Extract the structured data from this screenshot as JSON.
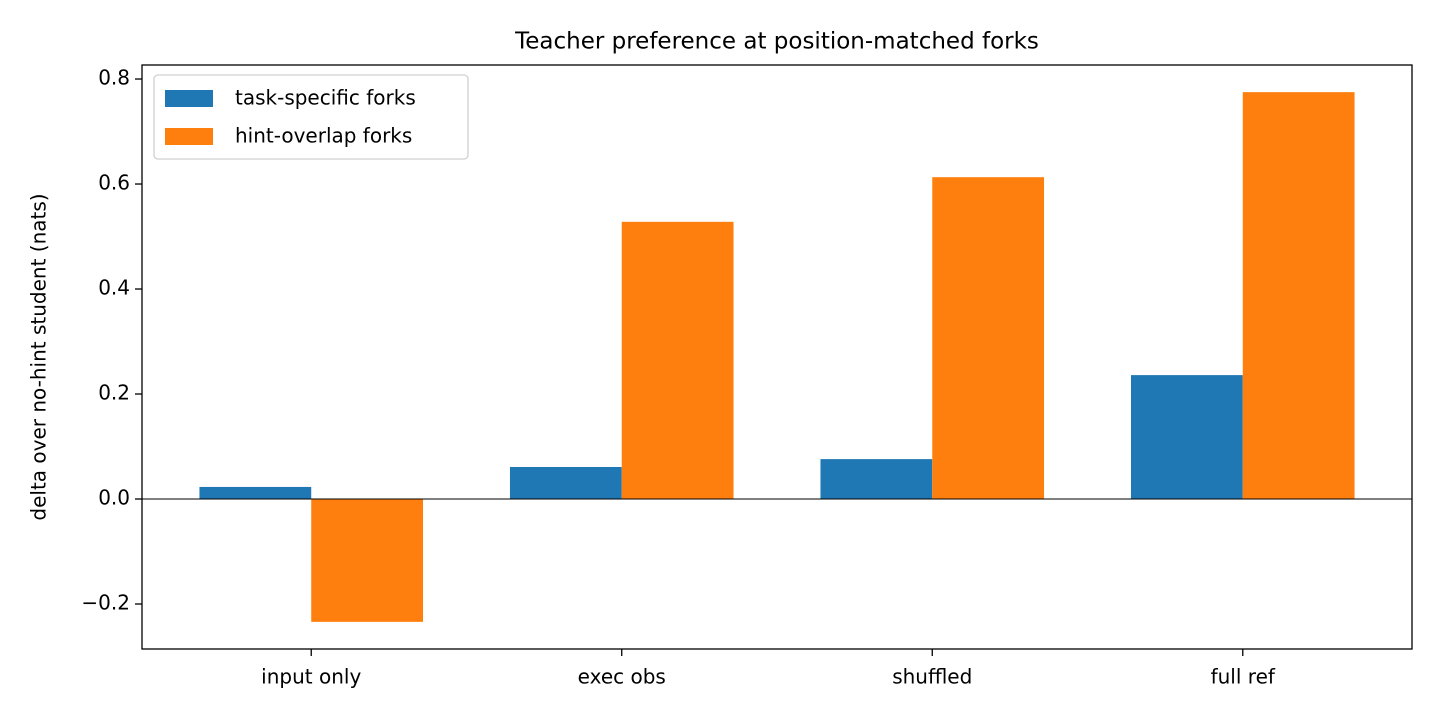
{
  "chart_data": {
    "type": "bar",
    "title": "Teacher preference at position-matched forks",
    "y_label": "delta over no-hint student (nats)",
    "categories": [
      "input only",
      "exec obs",
      "shuffled",
      "full ref"
    ],
    "series": [
      {
        "name": "task-specific forks",
        "color": "#1f77b4",
        "values": [
          0.023,
          0.061,
          0.076,
          0.236
        ]
      },
      {
        "name": "hint-overlap forks",
        "color": "#ff7f0e",
        "values": [
          -0.234,
          0.528,
          0.613,
          0.775
        ]
      }
    ],
    "ylim": [
      -0.2857,
      0.8267
    ],
    "yticks": [
      {
        "value": -0.2,
        "label": "−0.2"
      },
      {
        "value": 0,
        "label": "0.0"
      },
      0.2,
      0.4,
      0.6,
      0.8
    ],
    "grid": false,
    "legend": "upper left"
  }
}
